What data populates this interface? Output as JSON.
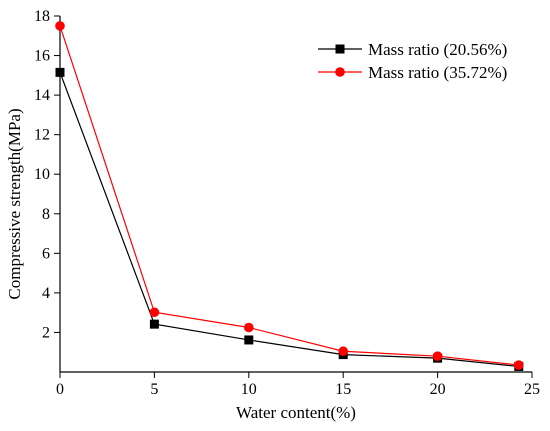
{
  "chart_data": {
    "type": "line",
    "xlabel": "Water content(%)",
    "ylabel": "Compressive strength(MPa)",
    "xlim": [
      0,
      25
    ],
    "ylim": [
      0,
      18
    ],
    "xticks": [
      0,
      5,
      10,
      15,
      20,
      25
    ],
    "yticks": [
      2,
      4,
      6,
      8,
      10,
      12,
      14,
      16,
      18
    ],
    "grid": false,
    "legend_position": "top-right",
    "series": [
      {
        "name": "Mass ratio (20.56%)",
        "color": "#000000",
        "marker": "square",
        "x": [
          0,
          5,
          10,
          15,
          20,
          24.3
        ],
        "y": [
          15.15,
          2.42,
          1.62,
          0.88,
          0.7,
          0.28
        ]
      },
      {
        "name": "Mass ratio (35.72%)",
        "color": "#ff0000",
        "marker": "circle",
        "x": [
          0,
          5,
          10,
          15,
          20,
          24.3
        ],
        "y": [
          17.5,
          3.02,
          2.25,
          1.05,
          0.8,
          0.35
        ]
      }
    ]
  }
}
